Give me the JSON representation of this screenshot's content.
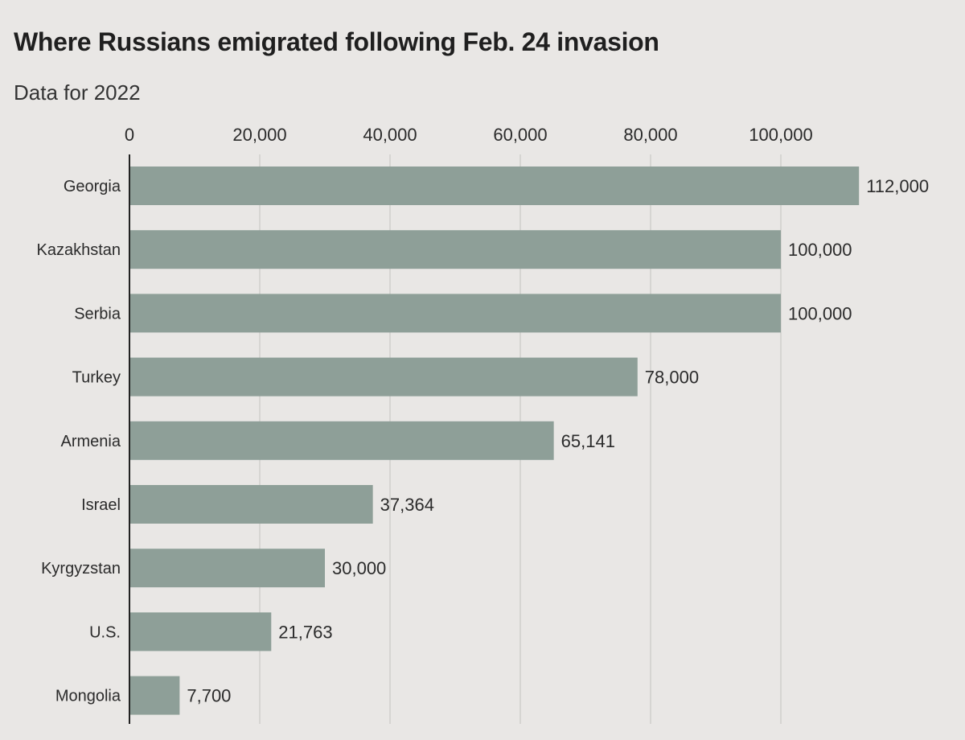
{
  "chart_data": {
    "type": "bar",
    "orientation": "horizontal",
    "title": "Where Russians emigrated following Feb. 24 invasion",
    "subtitle": "Data for 2022",
    "categories": [
      "Georgia",
      "Kazakhstan",
      "Serbia",
      "Turkey",
      "Armenia",
      "Israel",
      "Kyrgyzstan",
      "U.S.",
      "Mongolia"
    ],
    "values": [
      112000,
      100000,
      100000,
      78000,
      65141,
      37364,
      30000,
      21763,
      7700
    ],
    "value_labels": [
      "112,000",
      "100,000",
      "100,000",
      "78,000",
      "65,141",
      "37,364",
      "30,000",
      "21,763",
      "7,700"
    ],
    "xlim": [
      0,
      112000
    ],
    "xticks": [
      0,
      20000,
      40000,
      60000,
      80000,
      100000
    ],
    "xtick_labels": [
      "0",
      "20,000",
      "40,000",
      "60,000",
      "80,000",
      "100,000"
    ],
    "xaxis_position": "top",
    "grid": true,
    "legend": false,
    "colors": {
      "bar": "#8e9f98",
      "grid": "#cfcfcc",
      "axis": "#222222",
      "background": "#e9e7e5"
    }
  }
}
